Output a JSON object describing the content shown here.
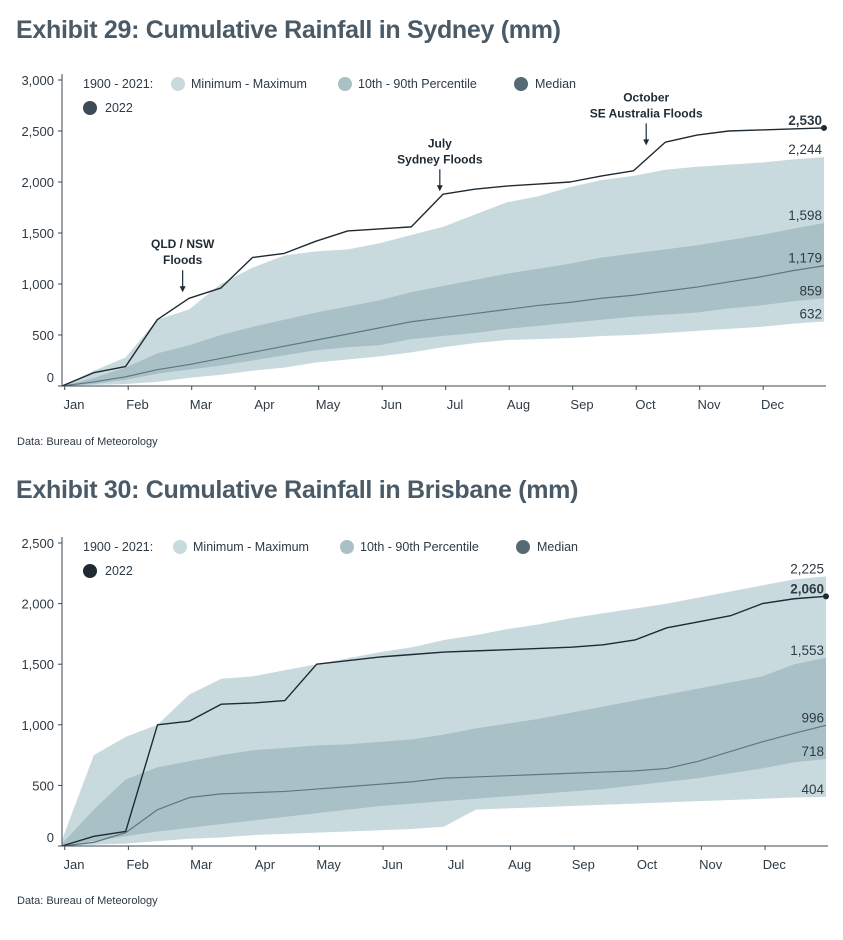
{
  "chart_data": [
    {
      "type": "area",
      "title": "Exhibit 29: Cumulative Rainfall in Sydney (mm)",
      "source": "Data: Bureau of Meteorology",
      "xlabel": "",
      "ylabel": "",
      "x_ticks": [
        "Jan",
        "Feb",
        "Mar",
        "Apr",
        "May",
        "Jun",
        "Jul",
        "Aug",
        "Sep",
        "Oct",
        "Nov",
        "Dec"
      ],
      "x": [
        0,
        0.5,
        1,
        1.5,
        2,
        2.5,
        3,
        3.5,
        4,
        4.5,
        5,
        5.5,
        6,
        6.5,
        7,
        7.5,
        8,
        8.5,
        9,
        9.5,
        10,
        10.5,
        11,
        11.5,
        12
      ],
      "y_ticks": [
        "0",
        "500",
        "1,000",
        "1,500",
        "2,000",
        "2,500",
        "3,000"
      ],
      "ylim": [
        0,
        3000
      ],
      "legend": {
        "period_label": "1900 - 2021:",
        "items": [
          "Minimum - Maximum",
          "10th - 90th Percentile",
          "Median",
          "2022"
        ]
      },
      "series": [
        {
          "name": "Minimum - Maximum",
          "lower": [
            0,
            10,
            20,
            40,
            80,
            110,
            150,
            180,
            230,
            260,
            290,
            330,
            380,
            420,
            450,
            460,
            470,
            490,
            500,
            520,
            540,
            560,
            580,
            610,
            632
          ],
          "upper": [
            0,
            150,
            280,
            650,
            750,
            1000,
            1160,
            1280,
            1320,
            1340,
            1400,
            1480,
            1560,
            1680,
            1800,
            1860,
            1950,
            2020,
            2060,
            2120,
            2150,
            2170,
            2190,
            2220,
            2244
          ]
        },
        {
          "name": "10th - 90th Percentile",
          "lower": [
            0,
            20,
            60,
            120,
            160,
            200,
            250,
            300,
            350,
            380,
            400,
            460,
            490,
            520,
            560,
            590,
            620,
            650,
            680,
            700,
            720,
            760,
            790,
            830,
            859
          ],
          "upper": [
            0,
            80,
            180,
            320,
            400,
            500,
            580,
            650,
            720,
            780,
            840,
            920,
            980,
            1040,
            1100,
            1150,
            1200,
            1260,
            1300,
            1340,
            1380,
            1430,
            1480,
            1540,
            1598
          ]
        },
        {
          "name": "Median",
          "values": [
            0,
            40,
            90,
            160,
            210,
            270,
            330,
            390,
            450,
            510,
            570,
            630,
            670,
            710,
            750,
            790,
            820,
            860,
            890,
            930,
            970,
            1020,
            1070,
            1130,
            1179
          ]
        },
        {
          "name": "2022",
          "values": [
            0,
            130,
            190,
            650,
            860,
            960,
            1260,
            1300,
            1420,
            1520,
            1540,
            1560,
            1880,
            1930,
            1960,
            1980,
            2000,
            2060,
            2110,
            2390,
            2460,
            2500,
            2510,
            2520,
            2530
          ]
        }
      ],
      "end_labels": [
        {
          "text": "2,530",
          "y": 2530,
          "bold": true
        },
        {
          "text": "2,244",
          "y": 2244
        },
        {
          "text": "1,598",
          "y": 1598
        },
        {
          "text": "1,179",
          "y": 1179
        },
        {
          "text": "859",
          "y": 859
        },
        {
          "text": "632",
          "y": 632
        }
      ],
      "annotations": [
        {
          "lines": [
            "QLD / NSW",
            "Floods"
          ],
          "x": 1.9,
          "y_arrow": 880
        },
        {
          "lines": [
            "July",
            "Sydney Floods"
          ],
          "x": 5.95,
          "y_arrow": 1870
        },
        {
          "lines": [
            "October",
            "SE Australia Floods"
          ],
          "x": 9.2,
          "y_arrow": 2320
        }
      ],
      "colors": {
        "minmax": "#c9dade",
        "pct": "#a9c1c6",
        "median": "#5e7781",
        "y2022": "#1f2a33",
        "legend_median": "#566a74",
        "legend_2022": "#3e4a55"
      }
    },
    {
      "type": "area",
      "title": "Exhibit 30: Cumulative Rainfall in Brisbane (mm)",
      "source": "Data: Bureau of Meteorology",
      "xlabel": "",
      "ylabel": "",
      "x_ticks": [
        "Jan",
        "Feb",
        "Mar",
        "Apr",
        "May",
        "Jun",
        "Jul",
        "Aug",
        "Sep",
        "Oct",
        "Nov",
        "Dec"
      ],
      "x": [
        0,
        0.5,
        1,
        1.5,
        2,
        2.5,
        3,
        3.5,
        4,
        4.5,
        5,
        5.5,
        6,
        6.5,
        7,
        7.5,
        8,
        8.5,
        9,
        9.5,
        10,
        10.5,
        11,
        11.5,
        12
      ],
      "y_ticks": [
        "0",
        "500",
        "1,000",
        "1,500",
        "2,000",
        "2,500"
      ],
      "ylim": [
        0,
        2500
      ],
      "legend": {
        "period_label": "1900 - 2021:",
        "items": [
          "Minimum - Maximum",
          "10th - 90th Percentile",
          "Median",
          "2022"
        ]
      },
      "series": [
        {
          "name": "Minimum - Maximum",
          "lower": [
            0,
            10,
            20,
            40,
            60,
            70,
            90,
            100,
            110,
            120,
            130,
            140,
            160,
            300,
            310,
            320,
            330,
            340,
            350,
            360,
            370,
            380,
            390,
            400,
            404
          ],
          "upper": [
            50,
            750,
            900,
            1000,
            1250,
            1380,
            1400,
            1450,
            1500,
            1550,
            1600,
            1640,
            1700,
            1740,
            1790,
            1830,
            1880,
            1920,
            1960,
            2000,
            2050,
            2100,
            2150,
            2200,
            2225
          ]
        },
        {
          "name": "10th - 90th Percentile",
          "lower": [
            0,
            40,
            80,
            120,
            150,
            180,
            210,
            240,
            270,
            300,
            330,
            350,
            370,
            390,
            410,
            430,
            450,
            470,
            500,
            530,
            560,
            600,
            640,
            690,
            718
          ],
          "upper": [
            20,
            300,
            550,
            650,
            700,
            750,
            790,
            810,
            830,
            840,
            860,
            880,
            920,
            970,
            1010,
            1050,
            1100,
            1150,
            1200,
            1250,
            1300,
            1350,
            1400,
            1500,
            1553
          ]
        },
        {
          "name": "Median",
          "values": [
            0,
            30,
            110,
            300,
            400,
            430,
            440,
            450,
            470,
            490,
            510,
            530,
            560,
            570,
            580,
            590,
            600,
            610,
            620,
            640,
            700,
            780,
            860,
            930,
            996
          ]
        },
        {
          "name": "2022",
          "values": [
            0,
            80,
            120,
            1000,
            1030,
            1170,
            1180,
            1200,
            1500,
            1530,
            1560,
            1580,
            1600,
            1610,
            1620,
            1630,
            1640,
            1660,
            1700,
            1800,
            1850,
            1900,
            2000,
            2040,
            2060
          ]
        }
      ],
      "end_labels": [
        {
          "text": "2,225",
          "y": 2225
        },
        {
          "text": "2,060",
          "y": 2060,
          "bold": true
        },
        {
          "text": "1,553",
          "y": 1553
        },
        {
          "text": "996",
          "y": 996
        },
        {
          "text": "718",
          "y": 718
        },
        {
          "text": "404",
          "y": 404
        }
      ],
      "annotations": [],
      "colors": {
        "minmax": "#c9dade",
        "pct": "#a9c1c6",
        "median": "#5e7781",
        "y2022": "#1f2a33",
        "legend_median": "#566a74",
        "legend_2022": "#1f2a33"
      }
    }
  ]
}
